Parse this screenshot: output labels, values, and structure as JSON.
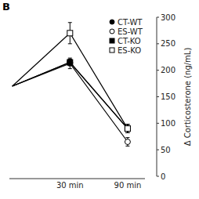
{
  "chart_data": {
    "type": "line",
    "ylabel": "Δ Corticosterone (ng/mL)",
    "annotations": [
      "B"
    ],
    "categories": [
      null,
      "30 min",
      "90 min"
    ],
    "ylim": [
      0,
      300
    ],
    "yticks": [
      0,
      50,
      100,
      150,
      200,
      250,
      300
    ],
    "grid": false,
    "legend": "upper right",
    "series": [
      {
        "name": "CT-WT",
        "color": "black",
        "marker": "circle",
        "values": [
          170,
          215,
          90
        ],
        "errors": [
          null,
          6,
          8
        ]
      },
      {
        "name": "ES-WT",
        "color": "black",
        "marker": "open-circle",
        "values": [
          170,
          213,
          65
        ],
        "errors": [
          null,
          10,
          8
        ]
      },
      {
        "name": "CT-KO",
        "color": "black",
        "marker": "square",
        "values": [
          170,
          215,
          90
        ],
        "errors": [
          null,
          6,
          8
        ]
      },
      {
        "name": "ES-KO",
        "color": "black",
        "marker": "open-square",
        "values": [
          170,
          270,
          90
        ],
        "errors": [
          null,
          20,
          8
        ]
      }
    ]
  }
}
